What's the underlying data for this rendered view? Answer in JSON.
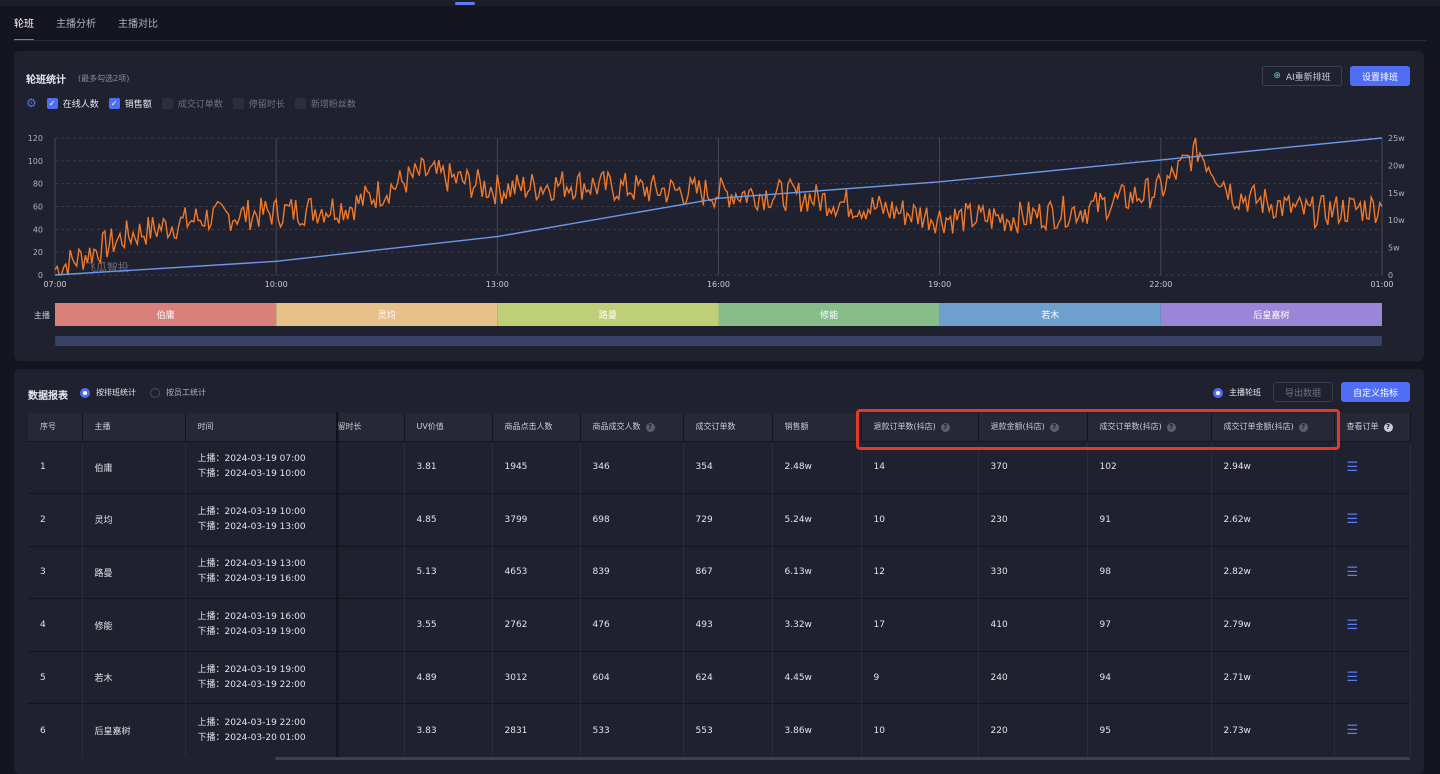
{
  "tabs": [
    "轮班",
    "主播分析",
    "主播对比"
  ],
  "rotation": {
    "title": "轮班统计",
    "hint": "(最多勾选2项)",
    "ai_button": "AI重新排班",
    "setup_button": "设置排班",
    "metrics": [
      {
        "label": "在线人数",
        "checked": true
      },
      {
        "label": "销售额",
        "checked": true
      },
      {
        "label": "成交订单数",
        "checked": false
      },
      {
        "label": "停留时长",
        "checked": false
      },
      {
        "label": "新增粉丝数",
        "checked": false
      }
    ],
    "host_row_label": "主播",
    "watermark": "飞瓜智投"
  },
  "chart_data": {
    "type": "line",
    "x_ticks": [
      "07:00",
      "10:00",
      "13:00",
      "16:00",
      "19:00",
      "22:00",
      "01:00"
    ],
    "y_left_ticks": [
      "0",
      "20",
      "40",
      "60",
      "80",
      "100",
      "120"
    ],
    "y_right_ticks": [
      "0",
      "5w",
      "10w",
      "15w",
      "20w",
      "25w"
    ],
    "ylim_left": [
      0,
      120
    ],
    "ylim_right": [
      0,
      25
    ],
    "colors": {
      "online": "#f0782a",
      "sales": "#6a98e8"
    },
    "series": [
      {
        "name": "在线人数",
        "axis": "left",
        "x": [
          "07:00",
          "08:00",
          "09:00",
          "10:00",
          "11:00",
          "12:00",
          "13:00",
          "14:00",
          "15:00",
          "16:00",
          "17:00",
          "18:00",
          "19:00",
          "20:00",
          "21:00",
          "22:00",
          "22:30",
          "23:00",
          "00:00",
          "01:00"
        ],
        "values": [
          5,
          35,
          50,
          55,
          60,
          90,
          75,
          80,
          75,
          72,
          70,
          60,
          50,
          50,
          58,
          75,
          110,
          70,
          55,
          60
        ]
      },
      {
        "name": "销售额",
        "axis": "right",
        "x": [
          "07:00",
          "10:00",
          "13:00",
          "16:00",
          "19:00",
          "22:00",
          "01:00"
        ],
        "values": [
          0,
          2.5,
          7,
          14,
          17,
          21,
          25
        ]
      }
    ],
    "hosts": [
      {
        "name": "伯庸",
        "color": "#d9807b"
      },
      {
        "name": "灵均",
        "color": "#e8c08a"
      },
      {
        "name": "路曼",
        "color": "#bfcf78"
      },
      {
        "name": "修能",
        "color": "#86bd8a"
      },
      {
        "name": "若木",
        "color": "#6da0cc"
      },
      {
        "name": "后皇嘉树",
        "color": "#9a85d6"
      }
    ]
  },
  "report": {
    "title": "数据报表",
    "mode_on": "按排班统计",
    "mode_off": "按员工统计",
    "toggle": "主播轮班",
    "export_button": "导出数据",
    "custom_button": "自定义指标",
    "headers": [
      "序号",
      "主播",
      "时间",
      "留时长",
      "UV价值",
      "商品点击人数",
      "商品成交人数",
      "成交订单数",
      "销售额",
      "退款订单数(抖店)",
      "退款金额(抖店)",
      "成交订单数(抖店)",
      "成交订单金额(抖店)",
      "查看订单"
    ],
    "rows": [
      {
        "no": "1",
        "host": "伯庸",
        "up": "上播：2024-03-19 07:00",
        "down": "下播：2024-03-19 10:00",
        "uv": "3.81",
        "click": "1945",
        "buyers": "346",
        "orders": "354",
        "sales": "2.48w",
        "refund_orders": "14",
        "refund_amount": "370",
        "dy_orders": "102",
        "dy_amount": "2.94w"
      },
      {
        "no": "2",
        "host": "灵均",
        "up": "上播：2024-03-19 10:00",
        "down": "下播：2024-03-19 13:00",
        "uv": "4.85",
        "click": "3799",
        "buyers": "698",
        "orders": "729",
        "sales": "5.24w",
        "refund_orders": "10",
        "refund_amount": "230",
        "dy_orders": "91",
        "dy_amount": "2.62w"
      },
      {
        "no": "3",
        "host": "路曼",
        "up": "上播：2024-03-19 13:00",
        "down": "下播：2024-03-19 16:00",
        "uv": "5.13",
        "click": "4653",
        "buyers": "839",
        "orders": "867",
        "sales": "6.13w",
        "refund_orders": "12",
        "refund_amount": "330",
        "dy_orders": "98",
        "dy_amount": "2.82w"
      },
      {
        "no": "4",
        "host": "修能",
        "up": "上播：2024-03-19 16:00",
        "down": "下播：2024-03-19 19:00",
        "uv": "3.55",
        "click": "2762",
        "buyers": "476",
        "orders": "493",
        "sales": "3.32w",
        "refund_orders": "17",
        "refund_amount": "410",
        "dy_orders": "97",
        "dy_amount": "2.79w"
      },
      {
        "no": "5",
        "host": "若木",
        "up": "上播：2024-03-19 19:00",
        "down": "下播：2024-03-19 22:00",
        "uv": "4.89",
        "click": "3012",
        "buyers": "604",
        "orders": "624",
        "sales": "4.45w",
        "refund_orders": "9",
        "refund_amount": "240",
        "dy_orders": "94",
        "dy_amount": "2.71w"
      },
      {
        "no": "6",
        "host": "后皇嘉树",
        "up": "上播：2024-03-19 22:00",
        "down": "下播：2024-03-20 01:00",
        "uv": "3.83",
        "click": "2831",
        "buyers": "533",
        "orders": "553",
        "sales": "3.86w",
        "refund_orders": "10",
        "refund_amount": "220",
        "dy_orders": "95",
        "dy_amount": "2.73w"
      }
    ]
  }
}
